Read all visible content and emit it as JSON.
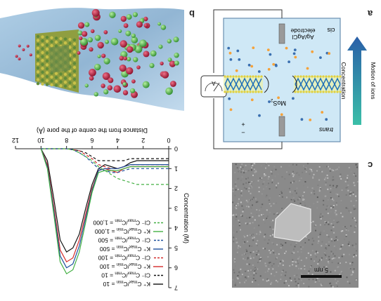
{
  "panels": {
    "a_letter": "a",
    "b_letter": "b",
    "c_letter": "c"
  },
  "schematic": {
    "electrode_line1": "Ag/AgCl",
    "electrode_line2": "electrode",
    "cis": "cis",
    "trans": "trans",
    "material": "MoS",
    "material_sub": "2",
    "ammeter": "A",
    "plus": "+",
    "minus": "−",
    "arrow_label_outer": "Motion of ions",
    "arrow_label_inner": "Concentration",
    "colors": {
      "water": "#c9e6f5",
      "membrane": "#1f6fb8",
      "arrow_up": "#2a6fa8",
      "arrow_down": "#3bbfa8",
      "cation": "#f5a23a",
      "anion": "#3a6fb0"
    }
  },
  "tem": {
    "scale_label": "5 nm"
  },
  "chart_data": {
    "type": "line",
    "xlabel": "Distance from the centre of the pore (Å)",
    "ylabel": "Concentration (M)",
    "xlim": [
      0,
      12
    ],
    "ylim": [
      0,
      7
    ],
    "x_ticks": [
      "0",
      "2",
      "4",
      "6",
      "8",
      "10",
      "12"
    ],
    "y_ticks": [
      "0",
      "1",
      "2",
      "3",
      "4",
      "5",
      "6",
      "7"
    ],
    "x": [
      0,
      0.5,
      1,
      1.5,
      2,
      2.5,
      3,
      3.5,
      4,
      4.5,
      5,
      5.5,
      6,
      6.5,
      7,
      7.5,
      8,
      8.5,
      9,
      9.5,
      10
    ],
    "series": [
      {
        "name": "K⁺  C_max/C_min = 10",
        "color": "#111111",
        "dash": "solid",
        "values": [
          0.6,
          0.6,
          0.6,
          0.6,
          0.6,
          0.6,
          0.7,
          0.9,
          1.0,
          0.9,
          0.8,
          1.0,
          1.8,
          3.0,
          4.3,
          5.0,
          5.2,
          4.6,
          2.5,
          0.6,
          0.0
        ]
      },
      {
        "name": "Cl⁻  C_max/C_min = 10",
        "color": "#111111",
        "dash": "dash",
        "values": [
          0.5,
          0.5,
          0.5,
          0.5,
          0.5,
          0.5,
          0.5,
          0.6,
          0.6,
          0.6,
          0.6,
          0.6,
          0.4,
          0.2,
          0.1,
          0.05,
          0.0,
          0.0,
          0.0,
          0.0,
          0.0
        ]
      },
      {
        "name": "K⁺  C_max/C_min = 100",
        "color": "#d42a2a",
        "dash": "solid",
        "values": [
          0.9,
          0.9,
          0.9,
          0.9,
          0.9,
          0.9,
          0.9,
          1.0,
          1.2,
          1.1,
          1.0,
          1.1,
          2.0,
          3.3,
          4.6,
          5.5,
          5.7,
          5.1,
          2.9,
          0.8,
          0.0
        ]
      },
      {
        "name": "Cl⁻  C_max/C_min = 100",
        "color": "#d42a2a",
        "dash": "dash",
        "values": [
          0.8,
          0.8,
          0.8,
          0.8,
          0.8,
          0.8,
          0.8,
          0.9,
          1.0,
          1.0,
          0.9,
          0.8,
          0.5,
          0.3,
          0.1,
          0.05,
          0.0,
          0.0,
          0.0,
          0.0,
          0.0
        ]
      },
      {
        "name": "K⁺  C_max/C_min = 500",
        "color": "#1d4f9c",
        "dash": "solid",
        "values": [
          0.8,
          0.8,
          0.8,
          0.8,
          0.8,
          0.8,
          0.8,
          0.9,
          1.0,
          1.0,
          1.0,
          1.1,
          2.1,
          3.5,
          4.9,
          5.8,
          6.0,
          5.4,
          3.1,
          0.9,
          0.0
        ]
      },
      {
        "name": "Cl⁻  C_max/C_min = 500",
        "color": "#1d4f9c",
        "dash": "dash",
        "values": [
          1.0,
          1.0,
          1.0,
          1.0,
          1.0,
          1.0,
          1.0,
          1.1,
          1.2,
          1.2,
          1.1,
          1.0,
          0.7,
          0.4,
          0.2,
          0.05,
          0.0,
          0.0,
          0.0,
          0.0,
          0.0
        ]
      },
      {
        "name": "K⁺  C_max/C_min = 1,000",
        "color": "#44b044",
        "dash": "solid",
        "values": [
          0.9,
          0.9,
          0.9,
          0.9,
          0.9,
          0.9,
          0.9,
          1.0,
          1.1,
          1.1,
          1.1,
          1.2,
          2.2,
          3.7,
          5.2,
          6.1,
          6.3,
          5.7,
          3.3,
          1.0,
          0.0
        ]
      },
      {
        "name": "Cl⁻  C_max/C_min = 1,000",
        "color": "#44b044",
        "dash": "dash",
        "values": [
          1.8,
          1.8,
          1.8,
          1.8,
          1.8,
          1.8,
          1.7,
          1.6,
          1.5,
          1.3,
          1.1,
          0.9,
          0.6,
          0.4,
          0.2,
          0.05,
          0.0,
          0.0,
          0.0,
          0.0,
          0.0
        ]
      }
    ],
    "legend": [
      {
        "ion": "K⁺",
        "label": "C",
        "sub1": "max",
        "sub2": "min",
        "value": "= 10",
        "color": "#111111",
        "dash": "solid"
      },
      {
        "ion": "Cl⁻",
        "label": "C",
        "sub1": "max",
        "sub2": "min",
        "value": "= 10",
        "color": "#111111",
        "dash": "dash"
      },
      {
        "ion": "K⁺",
        "label": "C",
        "sub1": "max",
        "sub2": "min",
        "value": "= 100",
        "color": "#d42a2a",
        "dash": "solid"
      },
      {
        "ion": "Cl⁻",
        "label": "C",
        "sub1": "max",
        "sub2": "min",
        "value": "= 100",
        "color": "#d42a2a",
        "dash": "dash"
      },
      {
        "ion": "K⁺",
        "label": "C",
        "sub1": "max",
        "sub2": "min",
        "value": "= 500",
        "color": "#1d4f9c",
        "dash": "solid"
      },
      {
        "ion": "Cl⁻",
        "label": "C",
        "sub1": "max",
        "sub2": "min",
        "value": "= 500",
        "color": "#1d4f9c",
        "dash": "dash"
      },
      {
        "ion": "K⁺",
        "label": "C",
        "sub1": "max",
        "sub2": "min",
        "value": "= 1,000",
        "color": "#44b044",
        "dash": "solid"
      },
      {
        "ion": "Cl⁻",
        "label": "C",
        "sub1": "max",
        "sub2": "min",
        "value": "= 1,000",
        "color": "#44b044",
        "dash": "dash"
      }
    ],
    "legend_placement": "top-left",
    "grid": false,
    "orientation": "rotated 180°"
  }
}
